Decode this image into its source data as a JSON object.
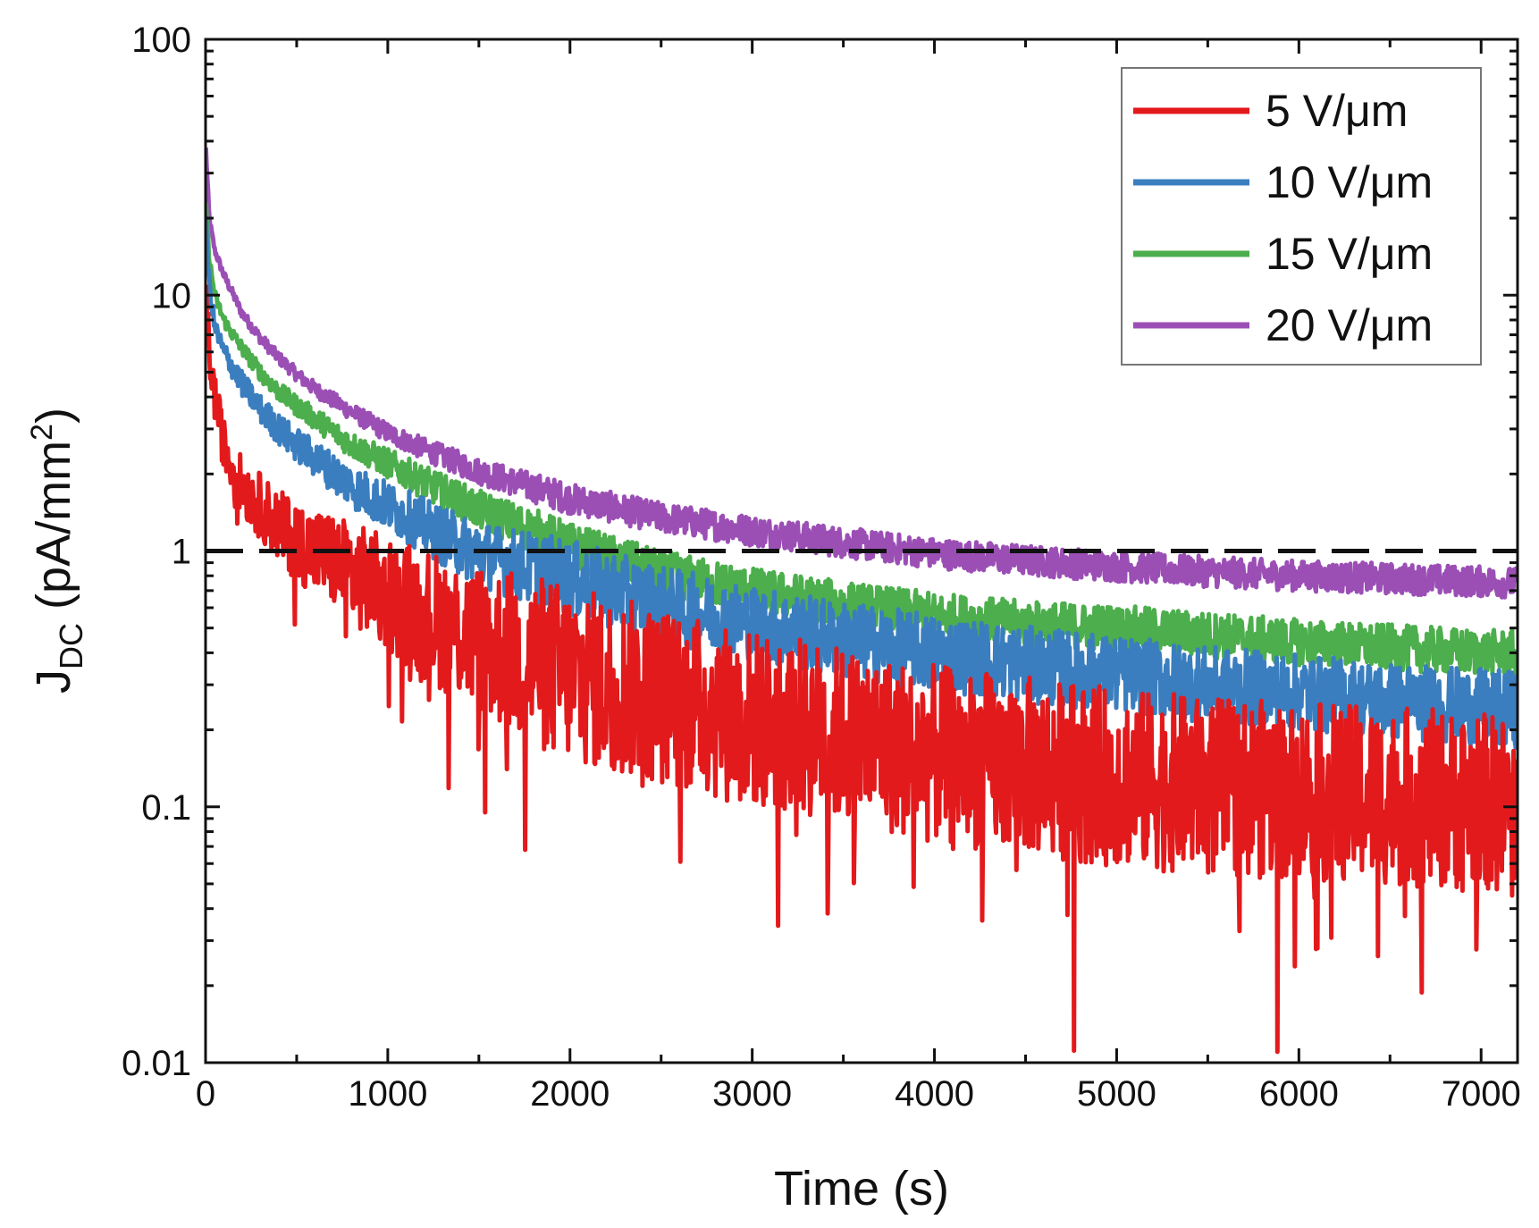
{
  "chart_data": {
    "type": "line",
    "yscale": "log",
    "xlim": [
      0,
      7200
    ],
    "ylim": [
      0.01,
      100
    ],
    "xticks": [
      "0",
      "1000",
      "2000",
      "3000",
      "4000",
      "5000",
      "6000",
      "7000"
    ],
    "yticks": [
      "0.01",
      "0.1",
      "1",
      "10",
      "100"
    ],
    "xlabel": "Time (s)",
    "ylabel": {
      "main": "J",
      "sub": "DC",
      "unit_pre": " (pA/mm",
      "sup": "2",
      "unit_post": ")"
    },
    "reference_line": {
      "y": 1,
      "style": "dashed",
      "color": "#111111"
    },
    "legend_position": "top-right",
    "series": [
      {
        "name": "5 V/μm",
        "color": "#e31a1c",
        "x": [
          0,
          20,
          50,
          100,
          150,
          200,
          300,
          400,
          500,
          600,
          700,
          800,
          1000,
          1200,
          1500,
          1800,
          2000,
          2500,
          3000,
          3500,
          4000,
          4500,
          5000,
          5500,
          6000,
          6500,
          7000,
          7200
        ],
        "values": [
          10,
          6,
          4,
          2.6,
          2.1,
          1.8,
          1.5,
          1.25,
          1.1,
          1.0,
          0.92,
          0.82,
          0.68,
          0.57,
          0.45,
          0.37,
          0.33,
          0.27,
          0.22,
          0.19,
          0.16,
          0.145,
          0.13,
          0.12,
          0.115,
          0.11,
          0.105,
          0.1
        ],
        "noise": 0.35
      },
      {
        "name": "10 V/μm",
        "color": "#3a7ebf",
        "x": [
          0,
          20,
          50,
          100,
          150,
          200,
          300,
          400,
          500,
          600,
          800,
          1000,
          1200,
          1400,
          1600,
          1800,
          2000,
          2500,
          3000,
          3500,
          4000,
          4500,
          5000,
          5500,
          6000,
          6500,
          7000,
          7200
        ],
        "values": [
          20,
          11,
          7.5,
          6,
          5.2,
          4.5,
          3.6,
          3.0,
          2.6,
          2.3,
          1.8,
          1.5,
          1.25,
          1.05,
          0.93,
          0.85,
          0.78,
          0.62,
          0.52,
          0.45,
          0.4,
          0.36,
          0.33,
          0.3,
          0.28,
          0.26,
          0.245,
          0.24
        ],
        "noise": 0.15
      },
      {
        "name": "15 V/μm",
        "color": "#4cae4c",
        "x": [
          0,
          20,
          50,
          100,
          150,
          200,
          300,
          400,
          500,
          600,
          800,
          1000,
          1200,
          1500,
          1800,
          2000,
          2200,
          2500,
          3000,
          3500,
          4000,
          4500,
          5000,
          5500,
          6000,
          6500,
          7000,
          7200
        ],
        "values": [
          24,
          14,
          10,
          8,
          7,
          6.2,
          5.0,
          4.2,
          3.7,
          3.3,
          2.6,
          2.2,
          1.85,
          1.45,
          1.2,
          1.05,
          0.95,
          0.82,
          0.7,
          0.62,
          0.56,
          0.52,
          0.5,
          0.47,
          0.44,
          0.42,
          0.4,
          0.4
        ],
        "noise": 0.09
      },
      {
        "name": "20 V/μm",
        "color": "#9b4fb5",
        "x": [
          0,
          20,
          50,
          100,
          200,
          300,
          400,
          500,
          600,
          800,
          1000,
          1200,
          1500,
          2000,
          2500,
          3000,
          3500,
          4000,
          4500,
          5000,
          5500,
          6000,
          6500,
          7000,
          7200
        ],
        "values": [
          40,
          20,
          15,
          12,
          8.5,
          6.8,
          5.7,
          4.9,
          4.3,
          3.5,
          2.9,
          2.5,
          2.05,
          1.6,
          1.35,
          1.2,
          1.08,
          0.98,
          0.92,
          0.87,
          0.83,
          0.8,
          0.78,
          0.76,
          0.75
        ],
        "noise": 0.06
      }
    ]
  }
}
